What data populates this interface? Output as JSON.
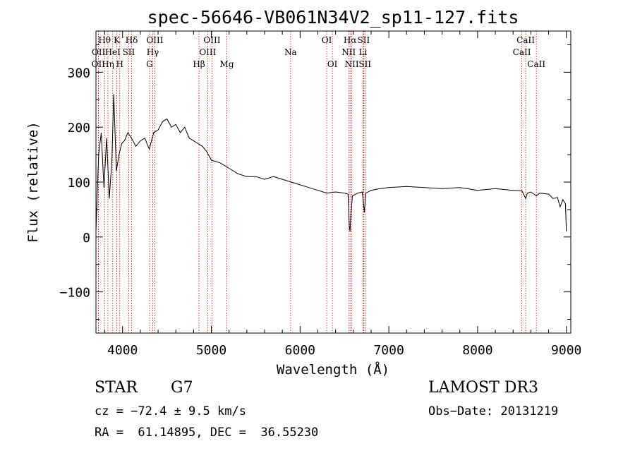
{
  "chart_data": {
    "type": "line",
    "title": "spec-56646-VB061N34V2_sp11-127.fits",
    "xlabel": "Wavelength (Å)",
    "ylabel": "Flux (relative)",
    "xlim": [
      3700,
      9050
    ],
    "ylim": [
      -175,
      375
    ],
    "x_ticks": [
      4000,
      5000,
      6000,
      7000,
      8000,
      9000
    ],
    "x_tick_labels": [
      "4000",
      "5000",
      "6000",
      "7000",
      "8000",
      "9000"
    ],
    "y_ticks": [
      -100,
      0,
      100,
      200,
      300
    ],
    "y_tick_labels": [
      "−100",
      "0",
      "100",
      "200",
      "300"
    ],
    "series": [
      {
        "name": "flux",
        "x": [
          3700,
          3730,
          3760,
          3790,
          3820,
          3850,
          3880,
          3900,
          3930,
          3960,
          3990,
          4020,
          4060,
          4100,
          4150,
          4200,
          4250,
          4300,
          4350,
          4400,
          4450,
          4500,
          4550,
          4600,
          4650,
          4700,
          4750,
          4800,
          4850,
          4900,
          4950,
          5000,
          5100,
          5200,
          5300,
          5400,
          5500,
          5600,
          5700,
          5800,
          5900,
          6000,
          6100,
          6200,
          6300,
          6400,
          6500,
          6540,
          6555,
          6563,
          6572,
          6590,
          6650,
          6700,
          6715,
          6725,
          6740,
          6800,
          6900,
          7000,
          7200,
          7400,
          7600,
          7800,
          8000,
          8200,
          8400,
          8500,
          8542,
          8560,
          8600,
          8662,
          8700,
          8800,
          8850,
          8900,
          8930,
          8960,
          8990,
          9000
        ],
        "y": [
          10,
          150,
          190,
          90,
          180,
          70,
          140,
          260,
          120,
          150,
          170,
          175,
          190,
          180,
          165,
          175,
          180,
          160,
          190,
          195,
          210,
          215,
          200,
          205,
          190,
          200,
          180,
          175,
          170,
          165,
          155,
          140,
          135,
          125,
          115,
          110,
          110,
          105,
          110,
          105,
          100,
          95,
          90,
          85,
          80,
          82,
          80,
          78,
          20,
          10,
          40,
          75,
          80,
          82,
          60,
          45,
          80,
          85,
          88,
          90,
          92,
          90,
          88,
          90,
          85,
          88,
          85,
          84,
          70,
          80,
          82,
          75,
          80,
          78,
          70,
          72,
          55,
          68,
          60,
          10
        ]
      }
    ],
    "line_markers": [
      {
        "label": "OII",
        "wl": 3727,
        "row": 3
      },
      {
        "label": "OII",
        "wl": 3729,
        "row": 2
      },
      {
        "label": "Hθ",
        "wl": 3797,
        "row": 1
      },
      {
        "label": "Hη",
        "wl": 3835,
        "row": 3
      },
      {
        "label": "HeI",
        "wl": 3889,
        "row": 2
      },
      {
        "label": "K",
        "wl": 3934,
        "row": 1
      },
      {
        "label": "H",
        "wl": 3968,
        "row": 3
      },
      {
        "label": "SII",
        "wl": 4069,
        "row": 2
      },
      {
        "label": "Hδ",
        "wl": 4102,
        "row": 1
      },
      {
        "label": "G",
        "wl": 4304,
        "row": 3
      },
      {
        "label": "Hγ",
        "wl": 4340,
        "row": 2
      },
      {
        "label": "OIII",
        "wl": 4363,
        "row": 1
      },
      {
        "label": "Hβ",
        "wl": 4861,
        "row": 3
      },
      {
        "label": "OIII",
        "wl": 4959,
        "row": 2
      },
      {
        "label": "OIII",
        "wl": 5007,
        "row": 1
      },
      {
        "label": "Mg",
        "wl": 5175,
        "row": 3
      },
      {
        "label": "Na",
        "wl": 5893,
        "row": 2
      },
      {
        "label": "OI",
        "wl": 6300,
        "row": 1
      },
      {
        "label": "OI",
        "wl": 6364,
        "row": 3
      },
      {
        "label": "NII",
        "wl": 6548,
        "row": 2
      },
      {
        "label": "Hα",
        "wl": 6563,
        "row": 1
      },
      {
        "label": "NII",
        "wl": 6583,
        "row": 3
      },
      {
        "label": "Li",
        "wl": 6708,
        "row": 2
      },
      {
        "label": "SII",
        "wl": 6716,
        "row": 1
      },
      {
        "label": "SII",
        "wl": 6731,
        "row": 3
      },
      {
        "label": "CaII",
        "wl": 8498,
        "row": 2
      },
      {
        "label": "CaII",
        "wl": 8542,
        "row": 1
      },
      {
        "label": "CaII",
        "wl": 8662,
        "row": 3
      }
    ]
  },
  "info": {
    "object_class": "STAR",
    "subclass": "G7",
    "survey": "LAMOST DR3",
    "redshift": "cz = −72.4 ± 9.5 km/s",
    "obs_date": "Obs−Date: 20131219",
    "coords": "RA =  61.14895, DEC =  36.55230"
  },
  "colors": {
    "spectrum": "#000000",
    "marker_line": "#cc0000",
    "axis": "#000000"
  }
}
